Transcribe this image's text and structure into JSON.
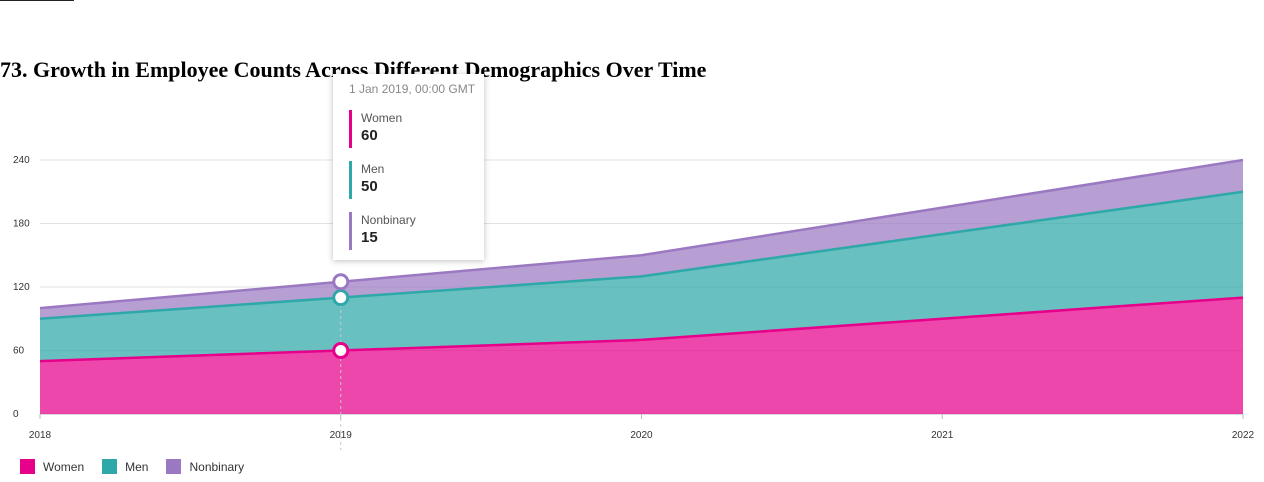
{
  "title": "73. Growth in Employee Counts Across Different Demographics Over Time",
  "colors": {
    "women": "#e6008a",
    "men": "#2ea8a8",
    "nonbinary": "#9b78c2"
  },
  "tooltip": {
    "date": "1 Jan 2019, 00:00 GMT",
    "items": [
      {
        "name": "Women",
        "value": "60"
      },
      {
        "name": "Men",
        "value": "50"
      },
      {
        "name": "Nonbinary",
        "value": "15"
      }
    ]
  },
  "legend": [
    {
      "label": "Women"
    },
    {
      "label": "Men"
    },
    {
      "label": "Nonbinary"
    }
  ],
  "chart_data": {
    "type": "area",
    "stacked": true,
    "title": "73. Growth in Employee Counts Across Different Demographics Over Time",
    "x": [
      "2018",
      "2019",
      "2020",
      "2021",
      "2022"
    ],
    "series": [
      {
        "name": "Women",
        "values": [
          50,
          60,
          70,
          90,
          110
        ]
      },
      {
        "name": "Men",
        "values": [
          40,
          50,
          60,
          80,
          100
        ]
      },
      {
        "name": "Nonbinary",
        "values": [
          10,
          15,
          20,
          25,
          30
        ]
      }
    ],
    "y_ticks": [
      "0",
      "60",
      "120",
      "180",
      "240"
    ],
    "ylim": [
      0,
      240
    ],
    "grid": true,
    "legend_position": "bottom-left",
    "highlighted_x": "2019"
  }
}
